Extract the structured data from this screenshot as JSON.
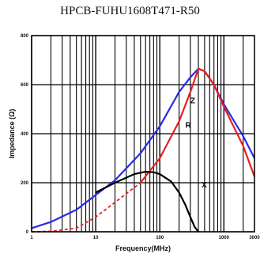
{
  "chart_data": {
    "type": "line",
    "title": "HPCB-FUHU1608T471-R50",
    "xlabel": "Frequency(MHz)",
    "ylabel": "Impedance (Ω)",
    "x_scale": "log",
    "xlim": [
      1,
      3000
    ],
    "ylim": [
      0,
      800
    ],
    "x_ticks": [
      {
        "value": 1,
        "label": "1"
      },
      {
        "value": 10,
        "label": "10"
      },
      {
        "value": 100,
        "label": "100"
      },
      {
        "value": 1000,
        "label": "1000"
      },
      {
        "value": 3000,
        "label": "3000"
      }
    ],
    "y_ticks": [
      {
        "value": 0,
        "label": "0"
      },
      {
        "value": 200,
        "label": "200"
      },
      {
        "value": 400,
        "label": "400"
      },
      {
        "value": 600,
        "label": "600"
      },
      {
        "value": 800,
        "label": "800"
      }
    ],
    "grid": true,
    "series": [
      {
        "name": "Z",
        "color": "#2a2ae8",
        "dashed": false,
        "label_at": [
          300,
          525
        ],
        "x": [
          1,
          2,
          5,
          10,
          20,
          50,
          100,
          200,
          300,
          400,
          500,
          700,
          1000,
          2000,
          3000
        ],
        "y": [
          15,
          40,
          90,
          150,
          210,
          320,
          430,
          570,
          630,
          665,
          655,
          600,
          520,
          390,
          300
        ]
      },
      {
        "name": "R",
        "color": "#e81f1f",
        "dashed": true,
        "dashed_until": 30,
        "label_at": [
          250,
          425
        ],
        "x": [
          1,
          2,
          5,
          10,
          20,
          50,
          100,
          200,
          300,
          400,
          500,
          700,
          1000,
          2000,
          3000
        ],
        "y": [
          0,
          2,
          15,
          60,
          120,
          200,
          300,
          450,
          570,
          665,
          655,
          600,
          510,
          350,
          225
        ]
      },
      {
        "name": "X",
        "color": "#000000",
        "dashed": false,
        "label_at": [
          450,
          180
        ],
        "x": [
          10,
          20,
          40,
          60,
          80,
          100,
          150,
          200,
          250,
          300,
          350,
          400
        ],
        "y": [
          160,
          200,
          235,
          245,
          243,
          235,
          205,
          160,
          110,
          60,
          20,
          0
        ]
      }
    ]
  }
}
